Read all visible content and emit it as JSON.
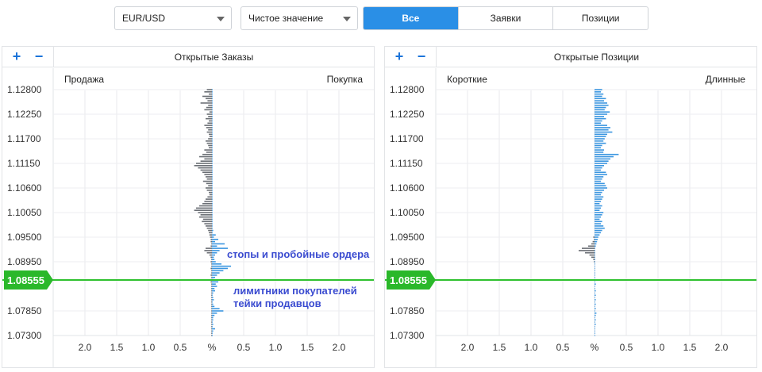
{
  "toolbar": {
    "instrument": "EUR/USD",
    "mode": "Чистое значение",
    "tabs": [
      {
        "label": "Все",
        "active": true
      },
      {
        "label": "Заявки",
        "active": false
      },
      {
        "label": "Позиции",
        "active": false
      }
    ]
  },
  "colors": {
    "accent": "#2a8fe6",
    "buy_bar": "#3b96e0",
    "sell_bar": "#6b6f75",
    "price_line": "#2fc12f",
    "annotation": "#3a4bd0"
  },
  "current_price": "1.08555",
  "annotations": [
    "стопы и пробойные ордера",
    "лимитники покупателей",
    "тейки продавцов"
  ],
  "chart_data": [
    {
      "type": "bar",
      "title": "Открытые Заказы",
      "left_label": "Продажа",
      "right_label": "Покупка",
      "y_ticks": [
        "1.12800",
        "1.12250",
        "1.11700",
        "1.11150",
        "1.10600",
        "1.10050",
        "1.09500",
        "1.08950",
        "1.07850",
        "1.07300"
      ],
      "ylim": [
        1.073,
        1.128
      ],
      "x_ticks": [
        "2.0",
        "1.5",
        "1.0",
        "0.5",
        "%",
        "0.5",
        "1.0",
        "1.5",
        "2.0"
      ],
      "xlim": [
        -2.5,
        2.5
      ],
      "price_step": 0.0005,
      "sell": [
        0.08,
        0.12,
        0.05,
        0.15,
        0.1,
        0.07,
        0.18,
        0.06,
        0.09,
        0.12,
        0.04,
        0.08,
        0.06,
        0.1,
        0.05,
        0.07,
        0.12,
        0.09,
        0.06,
        0.08,
        0.05,
        0.04,
        0.06,
        0.1,
        0.08,
        0.06,
        0.05,
        0.12,
        0.09,
        0.15,
        0.2,
        0.12,
        0.18,
        0.25,
        0.28,
        0.22,
        0.18,
        0.15,
        0.12,
        0.1,
        0.08,
        0.14,
        0.09,
        0.06,
        0.1,
        0.08,
        0.05,
        0.04,
        0.07,
        0.1,
        0.12,
        0.15,
        0.2,
        0.25,
        0.28,
        0.22,
        0.18,
        0.2,
        0.14,
        0.16,
        0.12,
        0.1,
        0.08,
        0.06,
        0.05,
        0.04,
        0.03,
        0.02,
        0.02,
        0.01,
        0.02,
        0.1,
        0.12,
        0.08,
        0.04,
        0.02,
        0.01,
        0.02,
        0.01,
        0.01,
        0.02,
        0.01,
        0.01,
        0.02,
        0.01,
        0.01,
        0.02,
        0.01,
        0.01,
        0.01,
        0.01,
        0.01,
        0.01,
        0.01,
        0.01,
        0.01,
        0.01,
        0.01,
        0.01,
        0.01,
        0.01,
        0.01,
        0.01,
        0.01,
        0.01,
        0.01,
        0.01,
        0.01,
        0.01,
        0.01,
        0.01
      ],
      "buy": [
        0.01,
        0.01,
        0.01,
        0.01,
        0.01,
        0.01,
        0.01,
        0.01,
        0.01,
        0.01,
        0.01,
        0.01,
        0.01,
        0.01,
        0.01,
        0.01,
        0.01,
        0.01,
        0.01,
        0.01,
        0.01,
        0.01,
        0.01,
        0.01,
        0.01,
        0.01,
        0.01,
        0.01,
        0.01,
        0.01,
        0.01,
        0.01,
        0.01,
        0.01,
        0.01,
        0.01,
        0.01,
        0.01,
        0.01,
        0.01,
        0.01,
        0.01,
        0.01,
        0.01,
        0.01,
        0.01,
        0.01,
        0.01,
        0.01,
        0.01,
        0.01,
        0.01,
        0.01,
        0.01,
        0.01,
        0.01,
        0.01,
        0.01,
        0.01,
        0.01,
        0.01,
        0.01,
        0.01,
        0.02,
        0.01,
        0.06,
        0.03,
        0.1,
        0.05,
        0.2,
        0.08,
        0.25,
        0.12,
        0.08,
        0.05,
        0.03,
        0.04,
        0.06,
        0.15,
        0.3,
        0.25,
        0.18,
        0.12,
        0.08,
        0.05,
        0.03,
        0.1,
        0.06,
        0.08,
        0.04,
        0.05,
        0.02,
        0.01,
        0.02,
        0.03,
        0.01,
        0.02,
        0.04,
        0.12,
        0.18,
        0.08,
        0.04,
        0.02,
        0.02,
        0.01,
        0.02,
        0.01,
        0.05,
        0.02,
        0.01,
        0.01
      ]
    },
    {
      "type": "bar",
      "title": "Открытые Позиции",
      "left_label": "Короткие",
      "right_label": "Длинные",
      "y_ticks": [
        "1.12800",
        "1.12250",
        "1.11700",
        "1.11150",
        "1.10600",
        "1.10050",
        "1.09500",
        "1.08950",
        "1.07850",
        "1.07300"
      ],
      "ylim": [
        1.073,
        1.128
      ],
      "x_ticks": [
        "2.0",
        "1.5",
        "1.0",
        "0.5",
        "%",
        "0.5",
        "1.0",
        "1.5",
        "2.0"
      ],
      "xlim": [
        -2.5,
        2.5
      ],
      "price_step": 0.0005,
      "sell": [
        0,
        0,
        0,
        0,
        0,
        0,
        0,
        0,
        0,
        0,
        0,
        0,
        0,
        0,
        0,
        0,
        0,
        0,
        0,
        0,
        0,
        0,
        0,
        0,
        0,
        0,
        0,
        0,
        0,
        0,
        0,
        0,
        0,
        0,
        0,
        0,
        0,
        0,
        0,
        0,
        0,
        0,
        0,
        0,
        0,
        0,
        0,
        0,
        0,
        0,
        0,
        0,
        0,
        0,
        0,
        0,
        0,
        0,
        0,
        0,
        0,
        0,
        0,
        0,
        0,
        0,
        0.02,
        0.01,
        0.03,
        0.05,
        0.1,
        0.2,
        0.25,
        0.15,
        0.08,
        0.05,
        0.02,
        0.01,
        0,
        0,
        0,
        0,
        0,
        0,
        0,
        0,
        0,
        0,
        0,
        0,
        0,
        0,
        0,
        0,
        0,
        0,
        0,
        0,
        0,
        0,
        0,
        0,
        0,
        0,
        0,
        0,
        0,
        0,
        0,
        0,
        0
      ],
      "buy": [
        0.12,
        0.1,
        0.14,
        0.12,
        0.18,
        0.15,
        0.2,
        0.22,
        0.18,
        0.16,
        0.24,
        0.2,
        0.15,
        0.18,
        0.12,
        0.1,
        0.2,
        0.25,
        0.22,
        0.28,
        0.2,
        0.18,
        0.16,
        0.14,
        0.18,
        0.12,
        0.1,
        0.15,
        0.14,
        0.38,
        0.3,
        0.25,
        0.22,
        0.2,
        0.15,
        0.12,
        0.1,
        0.18,
        0.2,
        0.14,
        0.12,
        0.1,
        0.16,
        0.18,
        0.2,
        0.15,
        0.12,
        0.1,
        0.14,
        0.12,
        0.1,
        0.08,
        0.12,
        0.1,
        0.08,
        0.14,
        0.12,
        0.1,
        0.08,
        0.12,
        0.1,
        0.14,
        0.16,
        0.12,
        0.1,
        0.08,
        0.06,
        0.05,
        0.04,
        0.03,
        0.02,
        0.01,
        0.01,
        0.01,
        0.01,
        0.01,
        0.01,
        0.01,
        0.01,
        0.01,
        0.01,
        0.01,
        0.01,
        0.01,
        0.01,
        0.01,
        0.01,
        0.02,
        0.01,
        0.01,
        0.02,
        0.01,
        0.02,
        0.01,
        0.02,
        0.01,
        0.02,
        0.01,
        0.02,
        0.01,
        0.03,
        0.02,
        0.01,
        0.02,
        0.01,
        0.02,
        0.01,
        0.01,
        0.01,
        0.01,
        0.01
      ]
    }
  ]
}
